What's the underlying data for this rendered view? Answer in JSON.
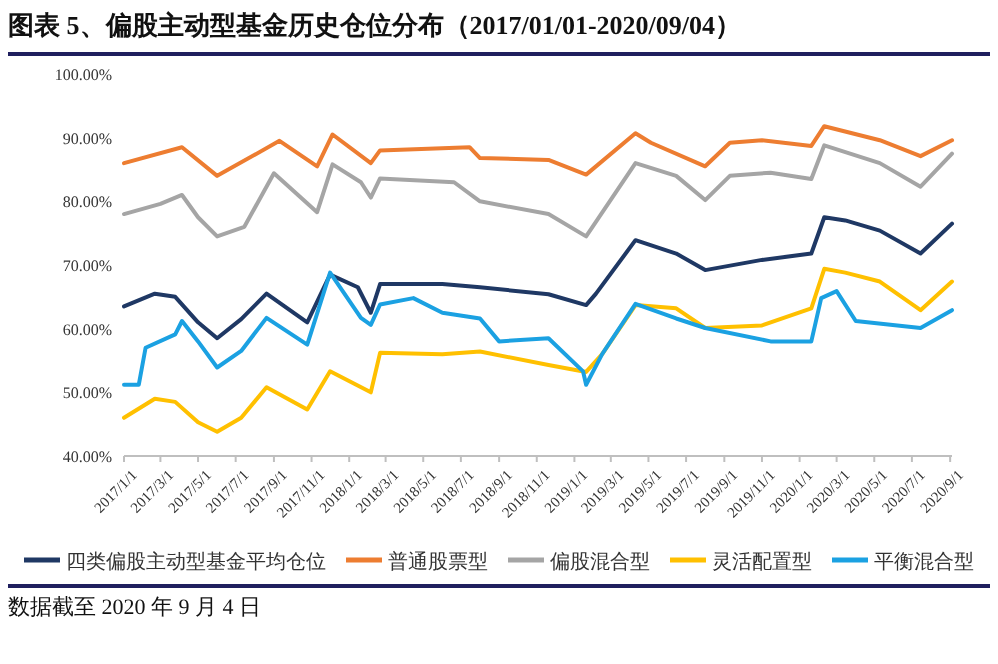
{
  "chart_data": {
    "type": "line",
    "title": "图表 5、偏股主动型基金历史仓位分布（2017/01/01-2020/09/04）",
    "annotations": [
      "数据截至 2020 年 9 月 4 日"
    ],
    "xlim": [
      "2017-01-01",
      "2020-09-04"
    ],
    "xticks": [
      {
        "value": "2017-01-01",
        "label": "2017/1/1"
      },
      {
        "value": "2017-03-01",
        "label": "2017/3/1"
      },
      {
        "value": "2017-05-01",
        "label": "2017/5/1"
      },
      {
        "value": "2017-07-01",
        "label": "2017/7/1"
      },
      {
        "value": "2017-09-01",
        "label": "2017/9/1"
      },
      {
        "value": "2017-11-01",
        "label": "2017/11/1"
      },
      {
        "value": "2018-01-01",
        "label": "2018/1/1"
      },
      {
        "value": "2018-03-01",
        "label": "2018/3/1"
      },
      {
        "value": "2018-05-01",
        "label": "2018/5/1"
      },
      {
        "value": "2018-07-01",
        "label": "2018/7/1"
      },
      {
        "value": "2018-09-01",
        "label": "2018/9/1"
      },
      {
        "value": "2018-11-01",
        "label": "2018/11/1"
      },
      {
        "value": "2019-01-01",
        "label": "2019/1/1"
      },
      {
        "value": "2019-03-01",
        "label": "2019/3/1"
      },
      {
        "value": "2019-05-01",
        "label": "2019/5/1"
      },
      {
        "value": "2019-07-01",
        "label": "2019/7/1"
      },
      {
        "value": "2019-09-01",
        "label": "2019/9/1"
      },
      {
        "value": "2019-11-01",
        "label": "2019/11/1"
      },
      {
        "value": "2020-01-01",
        "label": "2020/1/1"
      },
      {
        "value": "2020-03-01",
        "label": "2020/3/1"
      },
      {
        "value": "2020-05-01",
        "label": "2020/5/1"
      },
      {
        "value": "2020-07-01",
        "label": "2020/7/1"
      },
      {
        "value": "2020-09-01",
        "label": "2020/9/1"
      }
    ],
    "ylim": [
      40,
      100
    ],
    "yticks": [
      {
        "value": 40,
        "label": "40.00%"
      },
      {
        "value": 50,
        "label": "50.00%"
      },
      {
        "value": 60,
        "label": "60.00%"
      },
      {
        "value": 70,
        "label": "70.00%"
      },
      {
        "value": 80,
        "label": "80.00%"
      },
      {
        "value": 90,
        "label": "90.00%"
      },
      {
        "value": 100,
        "label": "100.00%"
      }
    ],
    "grid": false,
    "legend": "bottom",
    "series": [
      {
        "name": "四类偏股主动型基金平均仓位",
        "color": "#1f3864",
        "x": [
          "2017-01-01",
          "2017-02-20",
          "2017-03-25",
          "2017-05-01",
          "2017-06-01",
          "2017-07-10",
          "2017-08-20",
          "2017-10-25",
          "2017-12-01",
          "2018-01-15",
          "2018-02-05",
          "2018-02-20",
          "2018-06-01",
          "2018-08-01",
          "2018-11-20",
          "2019-01-20",
          "2019-02-05",
          "2019-04-10",
          "2019-06-15",
          "2019-08-01",
          "2019-11-01",
          "2020-01-20",
          "2020-02-10",
          "2020-03-15",
          "2020-05-10",
          "2020-07-15",
          "2020-09-04"
        ],
        "values": [
          63.5,
          65.5,
          65,
          61,
          58.5,
          61.5,
          65.5,
          61,
          68.5,
          66.5,
          62.5,
          67,
          67,
          66.5,
          65.4,
          63.7,
          65.5,
          73.9,
          71.8,
          69.2,
          70.8,
          71.8,
          77.5,
          77,
          75.4,
          71.8,
          76.5
        ]
      },
      {
        "name": "普通股票型",
        "color": "#ed7d31",
        "x": [
          "2017-01-01",
          "2017-04-05",
          "2017-06-01",
          "2017-09-10",
          "2017-11-10",
          "2017-12-05",
          "2018-02-05",
          "2018-02-20",
          "2018-07-15",
          "2018-08-01",
          "2018-11-20",
          "2019-01-20",
          "2019-04-10",
          "2019-05-05",
          "2019-08-01",
          "2019-09-10",
          "2019-11-01",
          "2020-01-20",
          "2020-02-10",
          "2020-05-10",
          "2020-07-15",
          "2020-09-04"
        ],
        "values": [
          86,
          88.5,
          84,
          89.5,
          85.5,
          90.5,
          86,
          88,
          88.5,
          86.8,
          86.5,
          84.2,
          90.7,
          89.2,
          85.5,
          89.2,
          89.6,
          88.7,
          91.8,
          89.6,
          87.1,
          89.6
        ]
      },
      {
        "name": "偏股混合型",
        "color": "#a5a5a5",
        "x": [
          "2017-01-01",
          "2017-03-01",
          "2017-04-05",
          "2017-05-01",
          "2017-06-01",
          "2017-07-15",
          "2017-09-01",
          "2017-11-10",
          "2017-12-05",
          "2018-01-20",
          "2018-02-05",
          "2018-02-20",
          "2018-06-20",
          "2018-08-01",
          "2018-11-20",
          "2019-01-20",
          "2019-04-10",
          "2019-06-15",
          "2019-08-01",
          "2019-09-10",
          "2019-11-15",
          "2020-01-20",
          "2020-02-10",
          "2020-05-10",
          "2020-07-15",
          "2020-09-04"
        ],
        "values": [
          78,
          79.6,
          81,
          77.5,
          74.5,
          76,
          84.4,
          78.3,
          85.8,
          83,
          80.6,
          83.6,
          83,
          80,
          78,
          74.5,
          86,
          84,
          80.2,
          84,
          84.5,
          83.5,
          88.8,
          86,
          82.3,
          87.5
        ]
      },
      {
        "name": "灵活配置型",
        "color": "#ffc000",
        "x": [
          "2017-01-01",
          "2017-02-20",
          "2017-03-25",
          "2017-05-01",
          "2017-06-01",
          "2017-07-10",
          "2017-08-20",
          "2017-10-25",
          "2017-12-01",
          "2018-02-05",
          "2018-02-20",
          "2018-06-01",
          "2018-08-01",
          "2018-11-20",
          "2019-01-20",
          "2019-02-15",
          "2019-04-10",
          "2019-06-15",
          "2019-08-01",
          "2019-11-01",
          "2020-01-20",
          "2020-02-10",
          "2020-03-15",
          "2020-05-10",
          "2020-07-15",
          "2020-09-04"
        ],
        "values": [
          46,
          49,
          48.5,
          45.3,
          43.8,
          46,
          50.8,
          47.3,
          53.3,
          50,
          56.2,
          56,
          56.4,
          54.3,
          53.2,
          56,
          63.7,
          63.2,
          60.1,
          60.5,
          63.2,
          69.4,
          68.8,
          67.4,
          62.9,
          67.4
        ]
      },
      {
        "name": "平衡混合型",
        "color": "#1ba1e2",
        "x": [
          "2017-01-01",
          "2017-01-25",
          "2017-02-05",
          "2017-03-25",
          "2017-04-05",
          "2017-05-01",
          "2017-06-01",
          "2017-07-10",
          "2017-08-20",
          "2017-10-25",
          "2017-12-01",
          "2018-01-20",
          "2018-02-05",
          "2018-02-20",
          "2018-04-15",
          "2018-06-01",
          "2018-08-01",
          "2018-09-01",
          "2018-11-20",
          "2019-01-15",
          "2019-01-20",
          "2019-02-15",
          "2019-04-10",
          "2019-06-15",
          "2019-08-01",
          "2019-11-15",
          "2020-01-20",
          "2020-02-05",
          "2020-03-01",
          "2020-04-01",
          "2020-07-15",
          "2020-09-04"
        ],
        "values": [
          51.2,
          51.2,
          57,
          59.1,
          61.2,
          58,
          53.9,
          56.5,
          61.7,
          57.5,
          68.8,
          61.7,
          60.6,
          63.8,
          64.8,
          62.5,
          61.6,
          58,
          58.5,
          53.3,
          51.2,
          56,
          63.9,
          61.6,
          60.1,
          58,
          58,
          64.8,
          65.9,
          61.2,
          60.1,
          62.9
        ]
      }
    ]
  }
}
